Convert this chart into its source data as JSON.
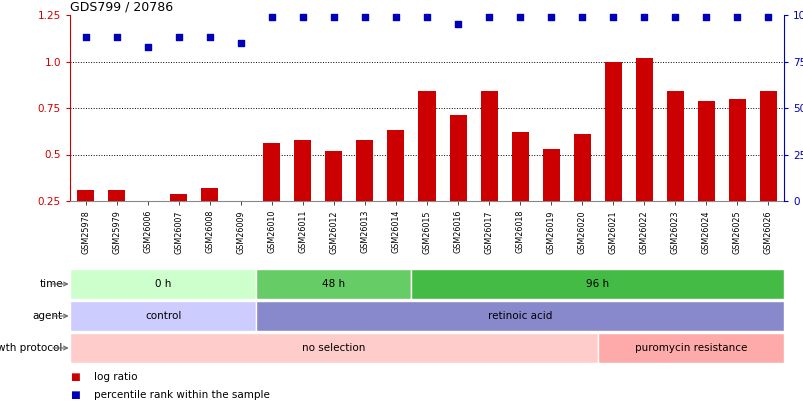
{
  "title": "GDS799 / 20786",
  "samples": [
    "GSM25978",
    "GSM25979",
    "GSM26006",
    "GSM26007",
    "GSM26008",
    "GSM26009",
    "GSM26010",
    "GSM26011",
    "GSM26012",
    "GSM26013",
    "GSM26014",
    "GSM26015",
    "GSM26016",
    "GSM26017",
    "GSM26018",
    "GSM26019",
    "GSM26020",
    "GSM26021",
    "GSM26022",
    "GSM26023",
    "GSM26024",
    "GSM26025",
    "GSM26026"
  ],
  "log_ratio": [
    0.31,
    0.31,
    0.21,
    0.29,
    0.32,
    0.22,
    0.56,
    0.58,
    0.52,
    0.58,
    0.63,
    0.84,
    0.71,
    0.84,
    0.62,
    0.53,
    0.61,
    1.0,
    1.02,
    0.84,
    0.79,
    0.8,
    0.84
  ],
  "percentile_rank": [
    1.13,
    1.13,
    1.08,
    1.13,
    1.13,
    1.1,
    1.24,
    1.24,
    1.24,
    1.24,
    1.24,
    1.24,
    1.2,
    1.24,
    1.24,
    1.24,
    1.24,
    1.24,
    1.24,
    1.24,
    1.24,
    1.24,
    1.24
  ],
  "ylim_lo": 0.25,
  "ylim_hi": 1.25,
  "yticks": [
    0.25,
    0.5,
    0.75,
    1.0,
    1.25
  ],
  "y2ticks": [
    0,
    25,
    50,
    75,
    100
  ],
  "dotted_lines": [
    0.5,
    0.75,
    1.0
  ],
  "bar_color": "#cc0000",
  "dot_color": "#0000bb",
  "time_groups": [
    {
      "label": "0 h",
      "start": 0,
      "end": 6,
      "color": "#ccffcc"
    },
    {
      "label": "48 h",
      "start": 6,
      "end": 11,
      "color": "#66cc66"
    },
    {
      "label": "96 h",
      "start": 11,
      "end": 23,
      "color": "#44bb44"
    }
  ],
  "agent_groups": [
    {
      "label": "control",
      "start": 0,
      "end": 6,
      "color": "#ccccff"
    },
    {
      "label": "retinoic acid",
      "start": 6,
      "end": 23,
      "color": "#8888cc"
    }
  ],
  "growth_groups": [
    {
      "label": "no selection",
      "start": 0,
      "end": 17,
      "color": "#ffcccc"
    },
    {
      "label": "puromycin resistance",
      "start": 17,
      "end": 23,
      "color": "#ffaaaa"
    }
  ],
  "row_labels": [
    "time",
    "agent",
    "growth protocol"
  ],
  "legend": [
    {
      "label": "log ratio",
      "color": "#cc0000"
    },
    {
      "label": "percentile rank within the sample",
      "color": "#0000bb"
    }
  ]
}
